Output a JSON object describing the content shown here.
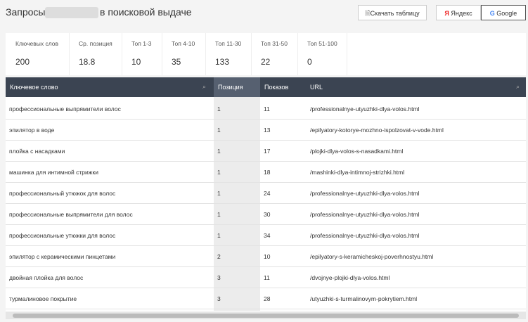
{
  "header": {
    "title_start": "Запросы",
    "title_end": "в поисковой выдаче",
    "buttons": [
      "Скачать таблицу",
      "Яндекс",
      "Google"
    ]
  },
  "stats": [
    {
      "label": "Ключевых слов",
      "value": 200
    },
    {
      "label": "Ср. позиция",
      "value": 18.8
    },
    {
      "label": "Топ 1-3",
      "value": 10
    },
    {
      "label": "Топ 4-10",
      "value": 35
    },
    {
      "label": "Топ 11-30",
      "value": 133
    },
    {
      "label": "Топ 31-50",
      "value": 22
    },
    {
      "label": "Топ 51-100",
      "value": 0
    }
  ],
  "table": {
    "columns": [
      "Ключевое слово",
      "Позиция",
      "Показов",
      "URL"
    ],
    "rows": [
      [
        "профессиональные выпрямители волос",
        1,
        11,
        "/professionalnye-utyuzhki-dlya-volos.html"
      ],
      [
        "эпилятор в воде",
        1,
        13,
        "/epilyatory-kotorye-mozhno-ispolzovat-v-vode.html"
      ],
      [
        "плойка с насадками",
        1,
        17,
        "/plojki-dlya-volos-s-nasadkami.html"
      ],
      [
        "машинка для интимной стрижки",
        1,
        18,
        "/mashinki-dlya-intimnoj-strizhki.html"
      ],
      [
        "профессиональный утюжок для волос",
        1,
        24,
        "/professionalnye-utyuzhki-dlya-volos.html"
      ],
      [
        "профессиональные выпрямители для волос",
        1,
        30,
        "/professionalnye-utyuzhki-dlya-volos.html"
      ],
      [
        "профессиональные утюжки для волос",
        1,
        34,
        "/professionalnye-utyuzhki-dlya-volos.html"
      ],
      [
        "эпилятор с керамическими пинцетами",
        2,
        10,
        "/epilyatory-s-keramicheskoj-poverhnostyu.html"
      ],
      [
        "двойная плойка для волос",
        3,
        11,
        "/dvojnye-plojki-dlya-volos.html"
      ],
      [
        "турмалиновое покрытие",
        3,
        28,
        "/utyuzhki-s-turmalinovym-pokrytiem.html"
      ]
    ]
  }
}
